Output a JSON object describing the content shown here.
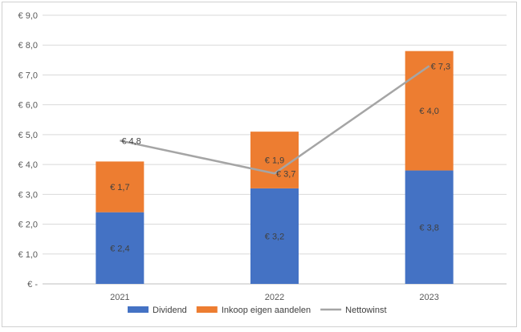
{
  "chart_data": {
    "type": "bar",
    "stacked": true,
    "categories": [
      "2021",
      "2022",
      "2023"
    ],
    "series": [
      {
        "name": "Dividend",
        "kind": "bar",
        "color": "#4472c4",
        "values": [
          2.4,
          3.2,
          3.8
        ],
        "labels": [
          "€ 2,4",
          "€ 3,2",
          "€ 3,8"
        ]
      },
      {
        "name": "Inkoop eigen aandelen",
        "kind": "bar",
        "color": "#ed7d31",
        "values": [
          1.7,
          1.9,
          4.0
        ],
        "labels": [
          "€ 1,7",
          "€ 1,9",
          "€ 4,0"
        ]
      },
      {
        "name": "Nettowinst",
        "kind": "line",
        "color": "#a5a5a5",
        "values": [
          4.8,
          3.7,
          7.3
        ],
        "labels": [
          "€ 4,8",
          "€ 3,7",
          "€ 7,3"
        ]
      }
    ],
    "ylim": [
      0,
      9
    ],
    "yticks": [
      "€ -",
      "€ 1,0",
      "€ 2,0",
      "€ 3,0",
      "€ 4,0",
      "€ 5,0",
      "€ 6,0",
      "€ 7,0",
      "€ 8,0",
      "€ 9,0"
    ],
    "grid": true,
    "legend_position": "bottom",
    "title": "",
    "xlabel": "",
    "ylabel": ""
  }
}
